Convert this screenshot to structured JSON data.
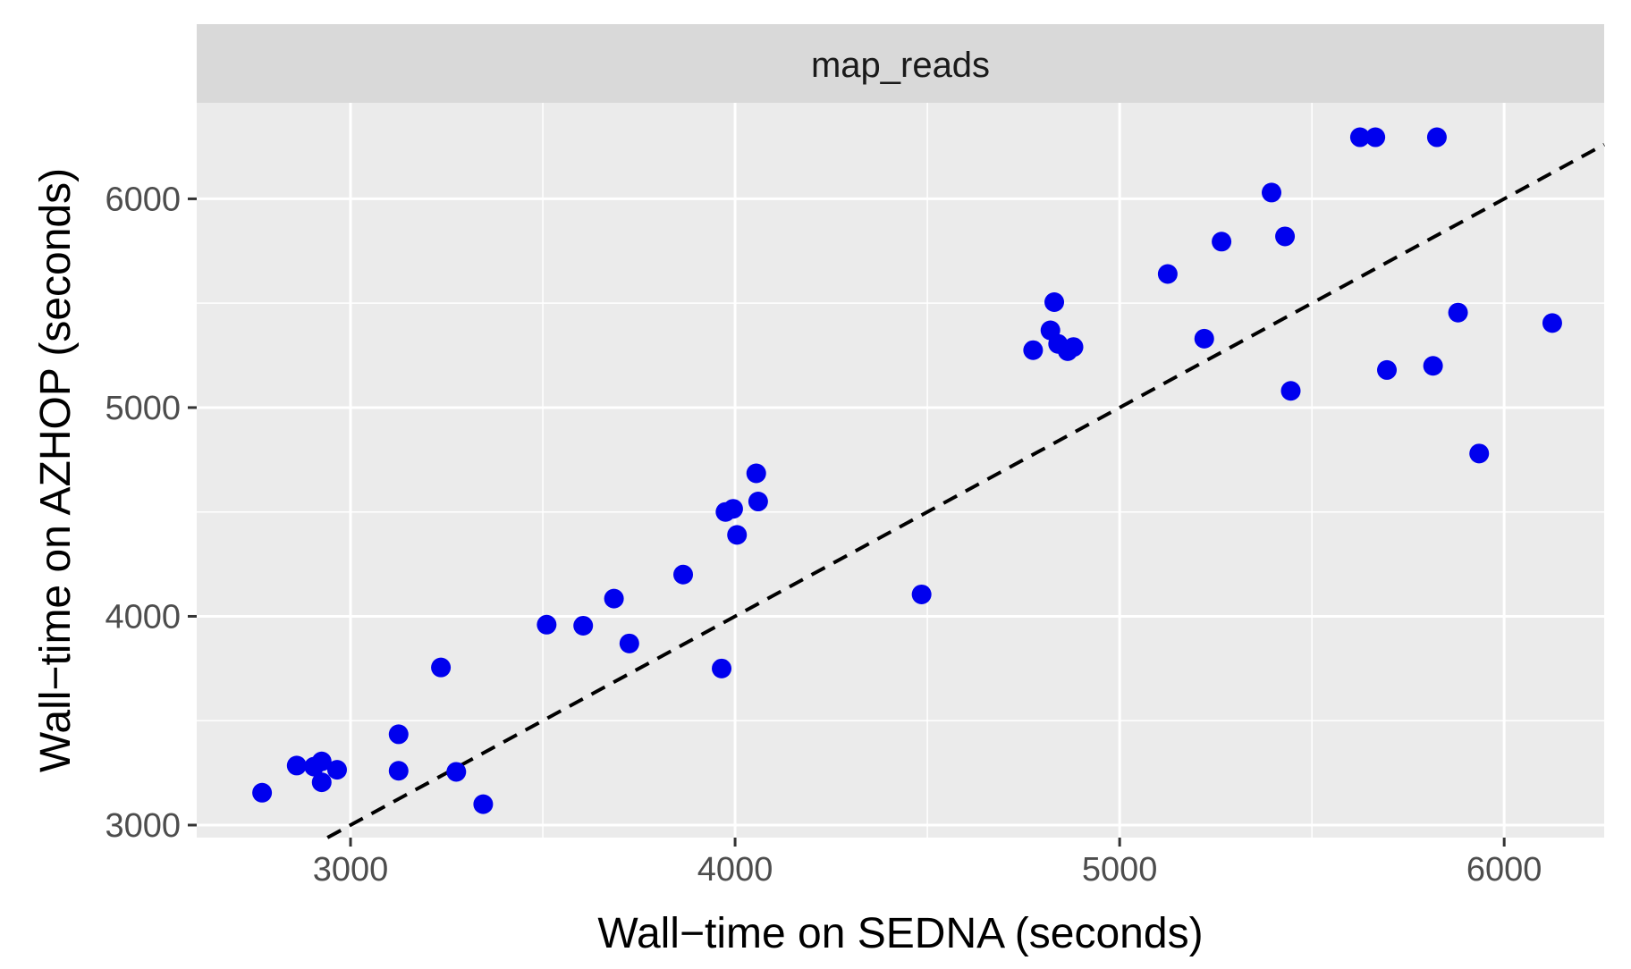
{
  "chart_data": {
    "type": "scatter",
    "panel_title": "map_reads",
    "xlabel": "Wall−time on SEDNA (seconds)",
    "ylabel": "Wall−time on AZHOP (seconds)",
    "xlim": [
      2600,
      6260
    ],
    "ylim": [
      2940,
      6460
    ],
    "x_ticks": [
      3000,
      4000,
      5000,
      6000
    ],
    "x_tick_labels": [
      "3000",
      "4000",
      "5000",
      "6000"
    ],
    "y_ticks": [
      3000,
      4000,
      5000,
      6000
    ],
    "y_tick_labels": [
      "3000",
      "4000",
      "5000",
      "6000"
    ],
    "grid": true,
    "reference_line": {
      "style": "dashed",
      "color": "#000000",
      "slope": 1,
      "intercept": 0
    },
    "point_color": "#0000ee",
    "series": [
      {
        "points": [
          [
            2770,
            3155
          ],
          [
            2860,
            3285
          ],
          [
            2905,
            3280
          ],
          [
            2925,
            3305
          ],
          [
            2925,
            3205
          ],
          [
            2965,
            3265
          ],
          [
            3125,
            3435
          ],
          [
            3125,
            3260
          ],
          [
            3235,
            3755
          ],
          [
            3275,
            3255
          ],
          [
            3345,
            3100
          ],
          [
            3510,
            3960
          ],
          [
            3605,
            3955
          ],
          [
            3685,
            4085
          ],
          [
            3725,
            3870
          ],
          [
            3865,
            4200
          ],
          [
            3965,
            3750
          ],
          [
            3975,
            4500
          ],
          [
            3995,
            4515
          ],
          [
            4005,
            4390
          ],
          [
            4055,
            4685
          ],
          [
            4060,
            4550
          ],
          [
            4485,
            4105
          ],
          [
            4775,
            5275
          ],
          [
            4820,
            5370
          ],
          [
            4830,
            5505
          ],
          [
            4840,
            5305
          ],
          [
            4865,
            5270
          ],
          [
            4880,
            5290
          ],
          [
            5125,
            5640
          ],
          [
            5220,
            5330
          ],
          [
            5265,
            5795
          ],
          [
            5395,
            6030
          ],
          [
            5430,
            5820
          ],
          [
            5445,
            5080
          ],
          [
            5625,
            6295
          ],
          [
            5665,
            6295
          ],
          [
            5695,
            5180
          ],
          [
            5815,
            5200
          ],
          [
            5825,
            6295
          ],
          [
            5880,
            5455
          ],
          [
            5935,
            4780
          ],
          [
            6125,
            5405
          ]
        ]
      }
    ]
  }
}
